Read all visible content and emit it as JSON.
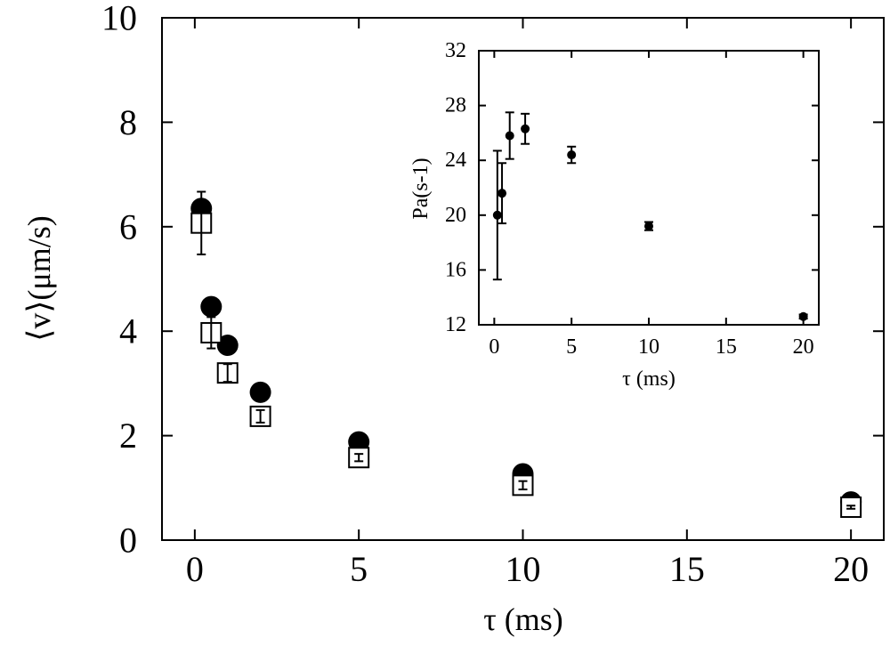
{
  "chart_data": [
    {
      "type": "scatter",
      "xlabel": "τ (ms)",
      "ylabel": "⟨v⟩(μm/s)",
      "xlim": [
        -1,
        21
      ],
      "ylim": [
        0,
        10
      ],
      "xticks": [
        0,
        5,
        10,
        15,
        20
      ],
      "yticks": [
        0,
        2,
        4,
        6,
        8,
        10
      ],
      "grid": false,
      "series": [
        {
          "marker": "filled-circle",
          "color": "#000000",
          "x": [
            0.2,
            0.5,
            1,
            2,
            5,
            10,
            20
          ],
          "y": [
            6.35,
            4.47,
            3.73,
            2.83,
            1.88,
            1.27,
            0.73
          ],
          "yerr": [
            0,
            0,
            0,
            0,
            0,
            0,
            0
          ]
        },
        {
          "marker": "open-square",
          "color": "#000000",
          "x": [
            0.2,
            0.5,
            1,
            2,
            5,
            10,
            20
          ],
          "y": [
            6.07,
            3.97,
            3.2,
            2.37,
            1.58,
            1.05,
            0.63
          ],
          "yerr": [
            0.6,
            0.3,
            0.17,
            0.12,
            0.07,
            0.08,
            0.03
          ]
        }
      ]
    },
    {
      "type": "scatter",
      "inset": true,
      "xlabel": "τ (ms)",
      "ylabel": "Pa(s-1)",
      "xlim": [
        -1,
        21
      ],
      "ylim": [
        12,
        32
      ],
      "xticks": [
        0,
        5,
        10,
        15,
        20
      ],
      "yticks": [
        12,
        16,
        20,
        24,
        28,
        32
      ],
      "grid": false,
      "series": [
        {
          "marker": "filled-circle",
          "color": "#000000",
          "x": [
            0.2,
            0.5,
            1,
            2,
            5,
            10,
            20
          ],
          "y": [
            20.0,
            21.6,
            25.8,
            26.3,
            24.4,
            19.2,
            12.6
          ],
          "yerr": [
            4.7,
            2.2,
            1.7,
            1.1,
            0.6,
            0.3,
            0.15
          ]
        }
      ]
    }
  ]
}
